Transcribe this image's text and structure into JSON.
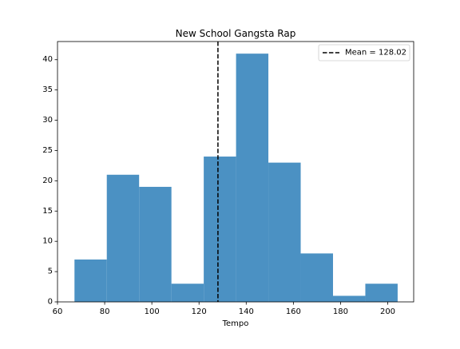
{
  "chart_data": {
    "type": "bar",
    "title": "New School Gangsta Rap",
    "xlabel": "Tempo",
    "ylabel": "",
    "xlim": [
      60,
      211
    ],
    "ylim": [
      0,
      43
    ],
    "xticks": [
      60,
      80,
      100,
      120,
      140,
      160,
      180,
      200
    ],
    "yticks": [
      0,
      5,
      10,
      15,
      20,
      25,
      30,
      35,
      40
    ],
    "grid": false,
    "legend_position": "top-right",
    "bin_edges": [
      67.2,
      80.9,
      94.6,
      108.3,
      122.0,
      135.7,
      149.4,
      163.1,
      176.8,
      190.5,
      204.2
    ],
    "counts": [
      7,
      21,
      19,
      3,
      24,
      41,
      23,
      8,
      1,
      3
    ],
    "bar_color": "#4b91c3",
    "mean_line": {
      "value": 128.02,
      "label": "Mean = 128.02",
      "color": "#000000",
      "style": "dashed"
    }
  }
}
